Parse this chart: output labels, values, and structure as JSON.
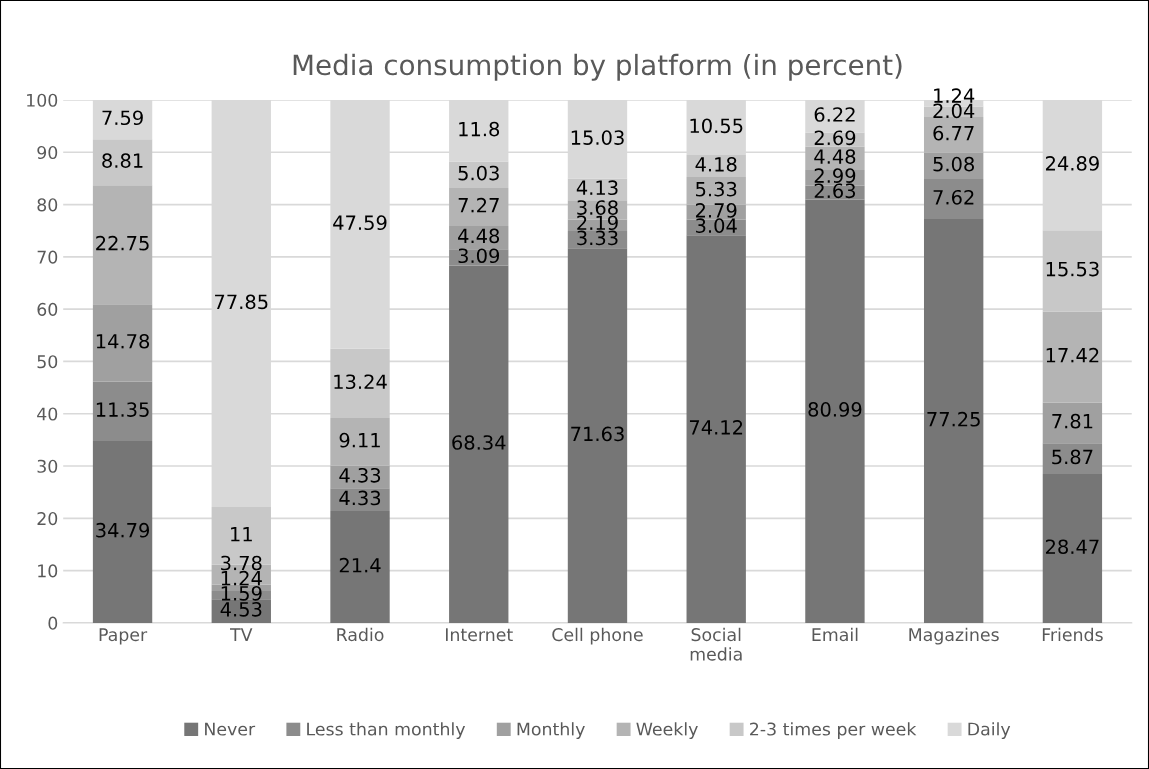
{
  "chart_data": {
    "type": "bar",
    "title": "Media consumption by platform (in percent)",
    "categories": [
      "Paper",
      "TV",
      "Radio",
      "Internet",
      "Cell phone",
      "Social media",
      "Email",
      "Magazines",
      "Friends"
    ],
    "stacked": true,
    "data_labels": true,
    "grid": "y",
    "legend": "bottom",
    "ylim": [
      0,
      100
    ],
    "yticks": [
      0,
      10,
      20,
      30,
      40,
      50,
      60,
      70,
      80,
      90,
      100
    ],
    "series": [
      {
        "name": "Never",
        "color": "#767676",
        "values": [
          34.79,
          4.53,
          21.4,
          68.34,
          71.63,
          74.12,
          80.99,
          77.25,
          28.47
        ]
      },
      {
        "name": "Less than monthly",
        "color": "#8c8c8c",
        "values": [
          11.35,
          1.59,
          4.33,
          3.09,
          3.33,
          3.04,
          2.63,
          7.62,
          5.87
        ]
      },
      {
        "name": "Monthly",
        "color": "#a0a0a0",
        "values": [
          14.78,
          1.24,
          4.33,
          4.48,
          2.19,
          2.79,
          2.99,
          5.08,
          7.81
        ]
      },
      {
        "name": "Weekly",
        "color": "#b4b4b4",
        "values": [
          22.75,
          3.78,
          9.11,
          7.27,
          3.68,
          5.33,
          4.48,
          6.77,
          17.42
        ]
      },
      {
        "name": "2-3 times per week",
        "color": "#c8c8c8",
        "values": [
          8.81,
          11,
          13.24,
          5.03,
          4.13,
          4.18,
          2.69,
          2.04,
          15.53
        ]
      },
      {
        "name": "Daily",
        "color": "#d9d9d9",
        "values": [
          7.59,
          77.85,
          47.59,
          11.8,
          15.03,
          10.55,
          6.22,
          1.24,
          24.89
        ]
      }
    ]
  }
}
